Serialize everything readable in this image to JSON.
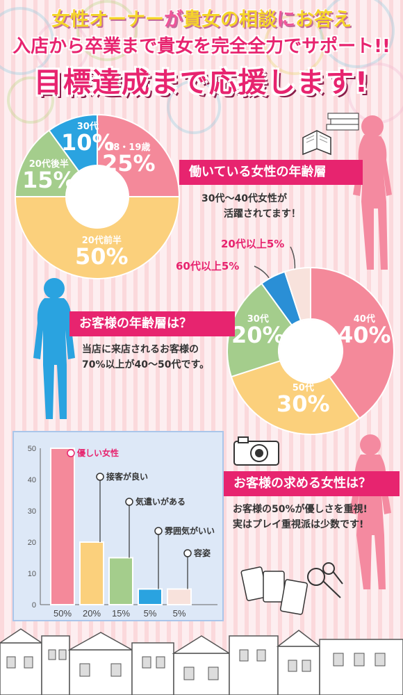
{
  "header": {
    "line1_a": "女性オーナー",
    "line1_b": "が",
    "line1_c": "貴女の相談",
    "line1_d": "に",
    "line1_e": "お答え",
    "line2": "入店から卒業まで貴女を完全全力でサポート!!",
    "line3": "目標達成まで応援します!"
  },
  "section1": {
    "title": "働いている女性の年齢層",
    "desc_line1": "30代～40代女性が",
    "desc_line2": "活躍されてます！"
  },
  "section2": {
    "title": "お客様の年齢層は？",
    "desc_line1": "当店に来店されるお客様の",
    "desc_line2": "70%以上が40～50代です。"
  },
  "section3": {
    "title": "お客様の求める女性は？",
    "desc_line1": "お客様の50%が優しさを重視!",
    "desc_line2": "実はプレイ重視派は少数です!"
  },
  "chart_data": [
    {
      "type": "pie",
      "title": "働いている女性の年齢層",
      "categories": [
        "18・19歳",
        "20代前半",
        "20代後半",
        "30代"
      ],
      "values": [
        25,
        50,
        15,
        10
      ],
      "value_labels": [
        "25%",
        "50%",
        "15%",
        "10%"
      ],
      "colors": [
        "#f4899a",
        "#fbd07c",
        "#a4cd8c",
        "#2aa3e0"
      ]
    },
    {
      "type": "pie",
      "title": "お客様の年齢層は？",
      "categories": [
        "40代",
        "50代",
        "30代",
        "60代以上",
        "20代以上"
      ],
      "values": [
        40,
        30,
        20,
        5,
        5
      ],
      "value_labels": [
        "40%",
        "30%",
        "20%",
        "5%",
        "5%"
      ],
      "callout_labels": [
        "60代以上5%",
        "20代以上5%"
      ],
      "colors": [
        "#f4899a",
        "#fbd07c",
        "#a4cd8c",
        "#2a8fd6",
        "#f8e2dc"
      ]
    },
    {
      "type": "bar",
      "title": "お客様の求める女性は？",
      "categories": [
        "優しい女性",
        "接客が良い",
        "気遣いがある",
        "雰囲気がいい",
        "容姿"
      ],
      "values": [
        50,
        20,
        15,
        5,
        5
      ],
      "value_labels": [
        "50%",
        "20%",
        "15%",
        "5%",
        "5%"
      ],
      "ylim": [
        0,
        50
      ],
      "yticks": [
        "0",
        "10",
        "20",
        "30",
        "40",
        "50"
      ],
      "grid": false,
      "colors": [
        "#f4899a",
        "#fbd07c",
        "#a4cd8c",
        "#2aa3e0",
        "#f8e2dc"
      ]
    }
  ],
  "colors": {
    "accent": "#e7246f",
    "silhouette_pink": "#f48aa0",
    "silhouette_blue": "#2aa3e0"
  }
}
